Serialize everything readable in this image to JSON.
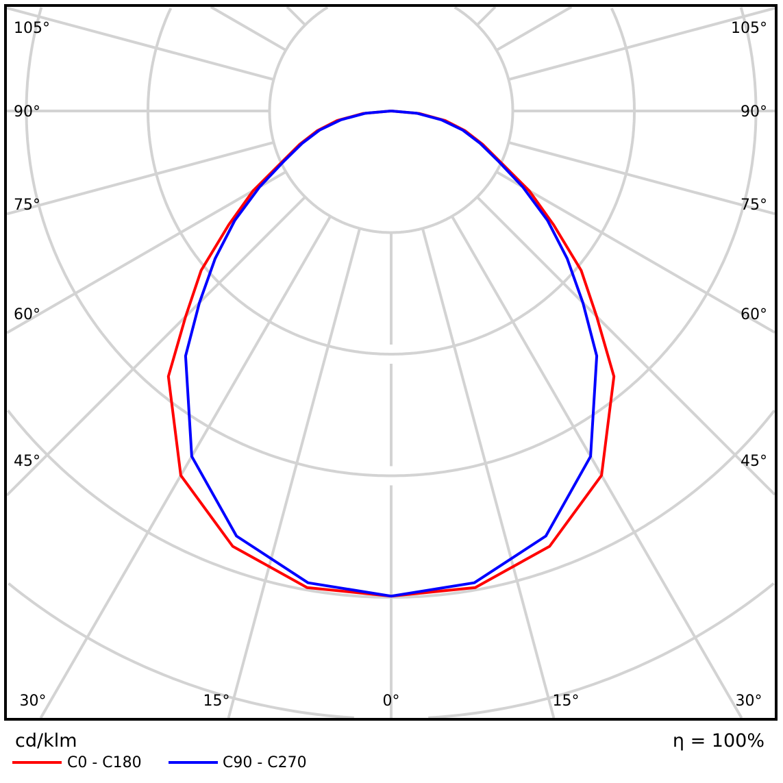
{
  "chart_data": {
    "type": "polar-line",
    "title": "",
    "unit_label": "cd/klm",
    "efficiency_label": "η = 100%",
    "radial_grid_step": 100,
    "angle_grid_step_deg": 15,
    "grid": true,
    "legend_position": "bottom-left",
    "angle_tick_labels": {
      "left": [
        "105°",
        "90°",
        "75°",
        "60°",
        "45°"
      ],
      "right": [
        "105°",
        "90°",
        "75°",
        "60°",
        "45°"
      ],
      "bottom": [
        "30°",
        "15°",
        "0°",
        "15°",
        "30°"
      ]
    },
    "angles_deg": [
      0,
      10,
      20,
      30,
      40,
      45,
      50,
      55,
      60,
      65,
      70,
      75,
      80,
      85,
      90
    ],
    "series": [
      {
        "name": "C0 - C180",
        "color": "#ff0000",
        "values": [
          399,
          398,
          381,
          346,
          285,
          239,
          204,
          163,
          131,
          99,
          80,
          63,
          45,
          23,
          0
        ]
      },
      {
        "name": "C90 - C270",
        "color": "#0000ff",
        "values": [
          399,
          394,
          372,
          328,
          263,
          223,
          189,
          157,
          125,
          97,
          78,
          61,
          42,
          21,
          0
        ]
      }
    ]
  }
}
